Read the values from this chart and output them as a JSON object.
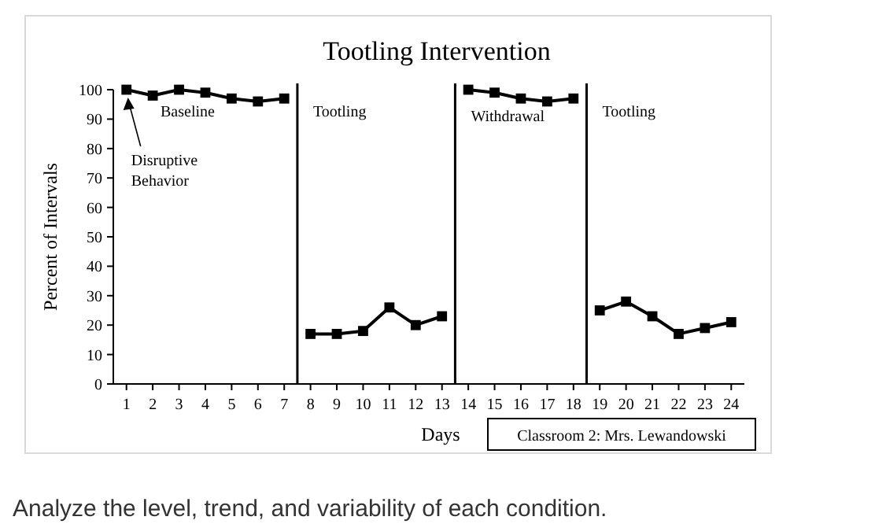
{
  "chart_data": {
    "type": "line",
    "title": "Tootling Intervention",
    "xlabel": "Days",
    "ylabel": "Percent of Intervals",
    "xlim": [
      0.5,
      24.5
    ],
    "xticks": [
      1,
      2,
      3,
      4,
      5,
      6,
      7,
      8,
      9,
      10,
      11,
      12,
      13,
      14,
      15,
      16,
      17,
      18,
      19,
      20,
      21,
      22,
      23,
      24
    ],
    "ylim": [
      0,
      100
    ],
    "yticks": [
      0,
      10,
      20,
      30,
      40,
      50,
      60,
      70,
      80,
      90,
      100
    ],
    "grid": false,
    "marker": "square",
    "line_style": "solid",
    "series": [
      {
        "color": "#000000",
        "x": [
          1,
          2,
          3,
          4,
          5,
          6,
          7
        ],
        "values": [
          100,
          98,
          100,
          99,
          97,
          96,
          97
        ]
      },
      {
        "color": "#000000",
        "x": [
          8,
          9,
          10,
          11,
          12,
          13
        ],
        "values": [
          17,
          17,
          18,
          26,
          20,
          23
        ]
      },
      {
        "color": "#000000",
        "x": [
          14,
          15,
          16,
          17,
          18
        ],
        "values": [
          100,
          99,
          97,
          96,
          97
        ]
      },
      {
        "color": "#000000",
        "x": [
          19,
          20,
          21,
          22,
          23,
          24
        ],
        "values": [
          25,
          28,
          23,
          17,
          19,
          21
        ]
      }
    ],
    "ref_lines": [
      {
        "axis": "x",
        "value": 7.5,
        "color": "#000000"
      },
      {
        "axis": "x",
        "value": 13.5,
        "color": "#000000"
      },
      {
        "axis": "x",
        "value": 18.5,
        "color": "#000000"
      }
    ],
    "annotations": [
      "Disruptive Behavior",
      "Baseline",
      "Tootling",
      "Withdrawal",
      "Tootling",
      "Classroom 2: Mrs. Lewandowski",
      "Analyze the level, trend, and variability of each condition."
    ]
  }
}
